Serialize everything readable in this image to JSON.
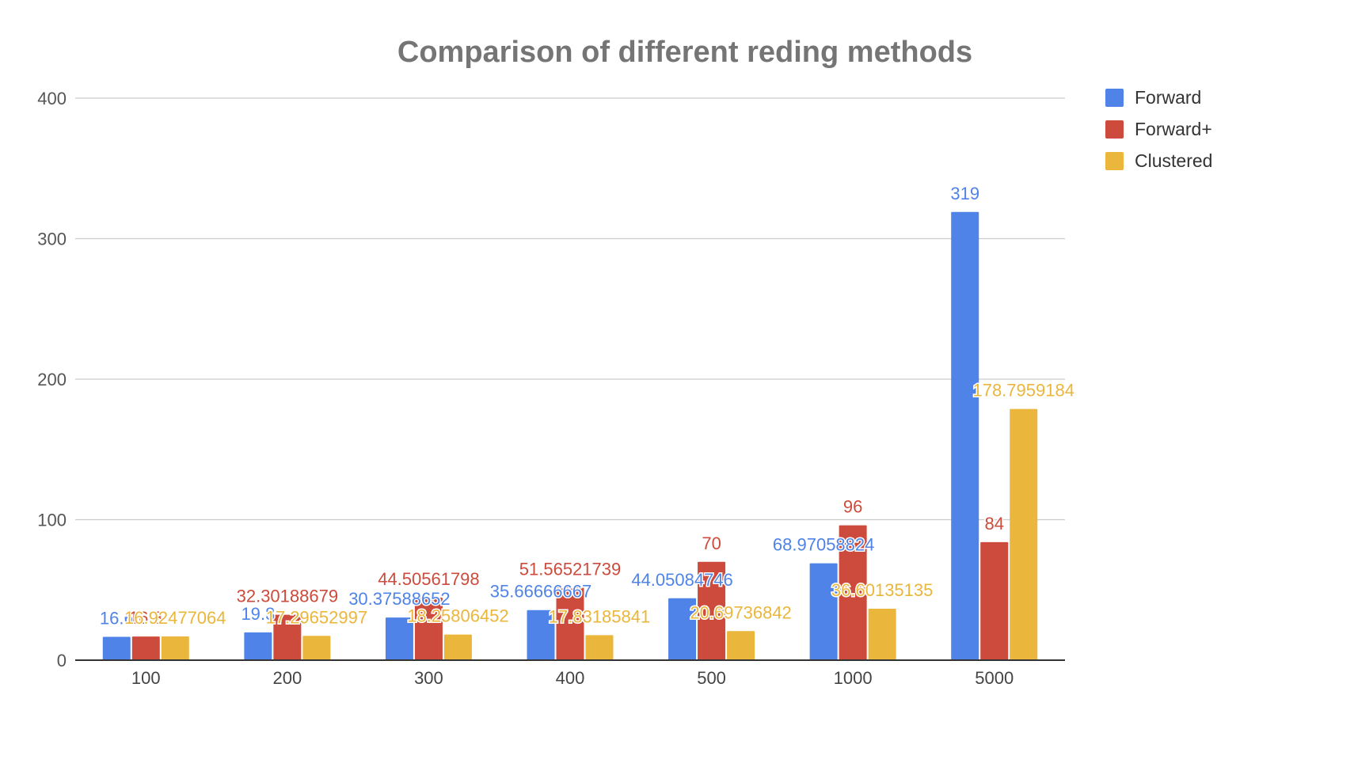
{
  "chart_data": {
    "type": "bar",
    "title": "Comparison of different reding methods",
    "xlabel": "",
    "ylabel": "",
    "categories": [
      "100",
      "200",
      "300",
      "400",
      "500",
      "1000",
      "5000"
    ],
    "series": [
      {
        "name": "Forward",
        "color": "#4f83e8",
        "values": [
          16.6,
          19.8,
          30.37588652,
          35.66666667,
          44.05084746,
          68.97058824,
          319
        ],
        "labels": [
          "16.6",
          "19.8",
          "30.37588652",
          "35.66666667",
          "44.05084746",
          "68.97058824",
          "319"
        ]
      },
      {
        "name": "Forward+",
        "color": "#cc4b3c",
        "values": [
          16.8,
          32.30188679,
          44.50561798,
          51.56521739,
          70,
          96,
          84
        ],
        "labels": [
          "16.8",
          "32.30188679",
          "44.50561798",
          "51.56521739",
          "70",
          "96",
          "84"
        ]
      },
      {
        "name": "Clustered",
        "color": "#ebb63c",
        "values": [
          16.92477064,
          17.29652997,
          18.25806452,
          17.83185841,
          20.69736842,
          36.60135135,
          178.7959184
        ],
        "labels": [
          "16.92477064",
          "17.29652997",
          "18.25806452",
          "17.83185841",
          "20.69736842",
          "36.60135135",
          "178.7959184"
        ]
      }
    ],
    "yticks": [
      "0",
      "100",
      "200",
      "300",
      "400"
    ],
    "ylim": [
      0,
      400
    ],
    "grid": true,
    "legend_position": "right"
  }
}
